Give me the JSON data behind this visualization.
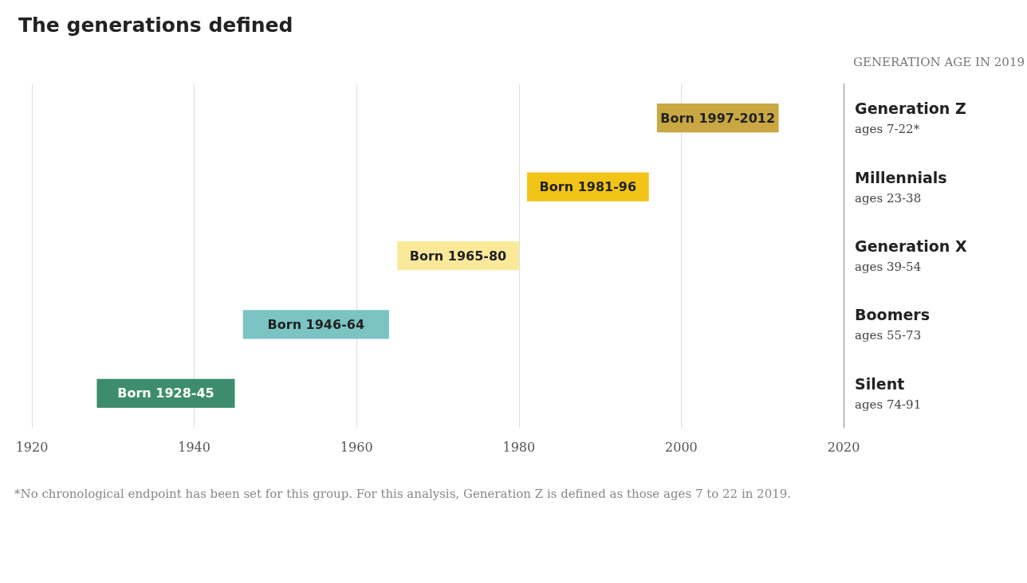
{
  "chart_data": {
    "type": "bar",
    "orientation": "horizontal",
    "title": "The generations defined",
    "ylabel": "GENERATION AGE IN 2019",
    "categories": [
      "Generation Z\nages 7-22*",
      "Millennials\nages 23-38",
      "Generation X\nages 39-54",
      "Boomers\nages 55-73",
      "Silent\nages 74-91"
    ],
    "base": [
      1997,
      1981,
      1965,
      1946,
      1928
    ],
    "values": [
      15,
      15,
      15,
      18,
      17
    ],
    "value_labels": [
      "Born 1997-2012",
      "Born 1981-96",
      "Born 1965-80",
      "Born 1946-64",
      "Born 1928-45"
    ],
    "colors": [
      "#c9a742",
      "#f2c418",
      "#fbe99a",
      "#7cc4c4",
      "#3d8c6e"
    ],
    "xlim": [
      1920,
      2020
    ],
    "xticks": [
      1920,
      1940,
      1960,
      1980,
      2000,
      2020
    ],
    "grid": "x",
    "annotations": [
      "*No chronological endpoint has been set for this group. For this analysis, Generation Z is defined as those ages 7 to 22 in 2019."
    ]
  }
}
